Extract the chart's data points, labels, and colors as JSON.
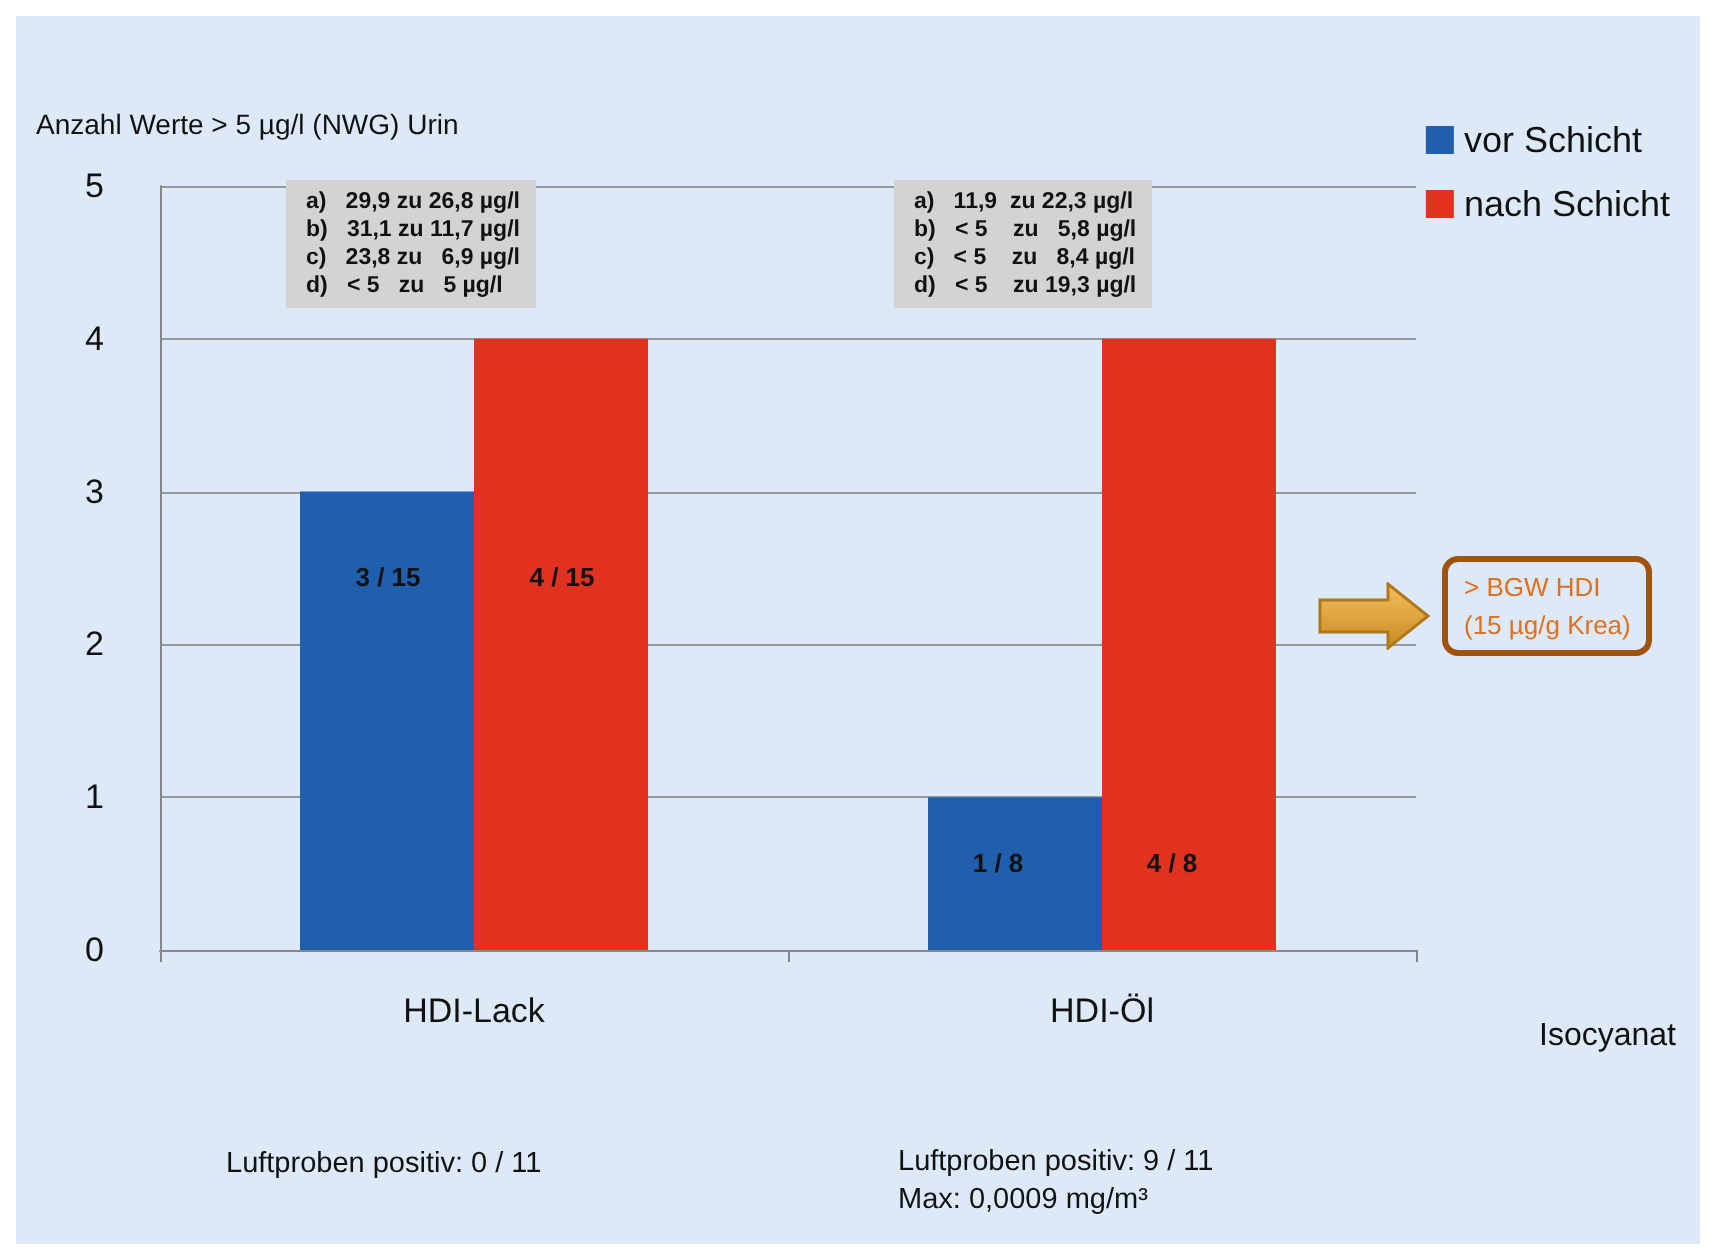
{
  "chart_data": {
    "type": "bar",
    "ylabel": "Anzahl Werte > 5 µg/l (NWG) Urin",
    "xlabel": "Isocyanat",
    "categories": [
      "HDI-Lack",
      "HDI-Öl"
    ],
    "series": [
      {
        "name": "vor Schicht",
        "color": "#1f5fae",
        "values": [
          3,
          1
        ]
      },
      {
        "name": "nach Schicht",
        "color": "#e0321f",
        "values": [
          4,
          4
        ]
      }
    ],
    "ylim": [
      0,
      5
    ],
    "yticks": [
      0,
      1,
      2,
      3,
      4,
      5
    ],
    "grid": "y",
    "legend": "top right",
    "annotations": [
      "a)   29,9 zu 26,8 µg/l\nb)   31,1 zu 11,7 µg/l\nc)   23,8 zu   6,9 µg/l\nd)   < 5   zu   5 µg/l",
      "a)   11,9  zu 22,3 µg/l\nb)   < 5    zu   5,8 µg/l\nc)   < 5    zu   8,4 µg/l\nd)   < 5    zu 19,3 µg/l",
      "> BGW HDI\n(15 µg/g Krea)",
      "Luftproben positiv: 0 / 11",
      "Luftproben positiv: 9 / 11\nMax: 0,0009 mg/m³",
      "3 / 15",
      "4 / 15",
      "1 / 8",
      "4 / 8"
    ]
  }
}
